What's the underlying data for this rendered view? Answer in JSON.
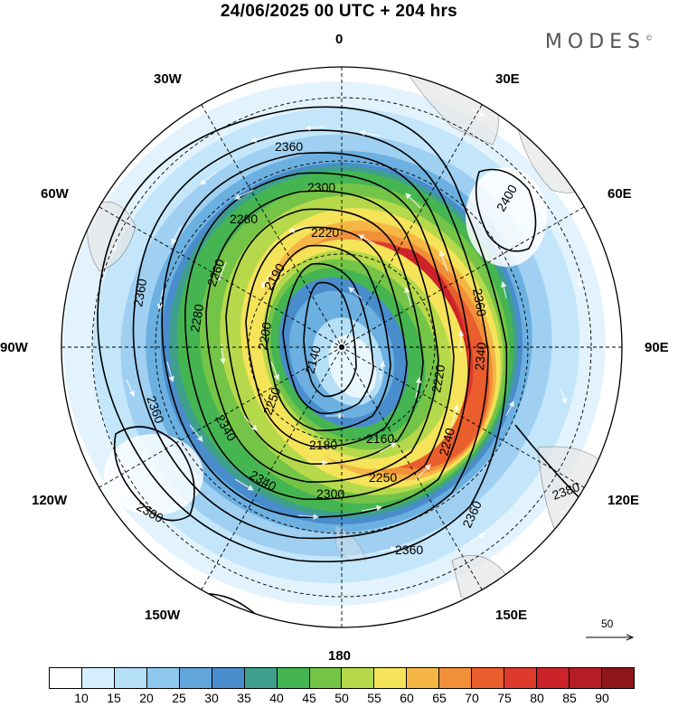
{
  "title": "24/06/2025  00 UTC  + 204 hrs",
  "brand": "MODES",
  "brand_mark": "©",
  "longitude_labels": {
    "lon_0": "0",
    "lon_30e": "30E",
    "lon_60e": "60E",
    "lon_90e": "90E",
    "lon_120e": "120E",
    "lon_150e": "150E",
    "lon_180": "180",
    "lon_150w": "150W",
    "lon_120w": "120W",
    "lon_90w": "90W",
    "lon_60w": "60W",
    "lon_30w": "30W"
  },
  "contour_labels": [
    "2360",
    "2300",
    "2280",
    "2220",
    "2190",
    "2260",
    "2280",
    "2200",
    "2140",
    "2250",
    "2160",
    "2180",
    "2300",
    "2250",
    "2240",
    "2220",
    "2340",
    "2360",
    "2400",
    "2380",
    "2360",
    "2360",
    "2380",
    "2340",
    "2340",
    "2360",
    "2360"
  ],
  "vector_scale": {
    "label": "50"
  },
  "colorbar": {
    "colors": [
      "#ffffff",
      "#d6efff",
      "#b4dff7",
      "#8ec8ee",
      "#62a6dc",
      "#4a8dcc",
      "#3ea08c",
      "#45b552",
      "#74c447",
      "#b6d94b",
      "#f5e35a",
      "#f6b645",
      "#f2903a",
      "#ea5e2d",
      "#de3a2b",
      "#cc2229",
      "#b51d24",
      "#8f161a"
    ],
    "tick_labels": [
      "10",
      "15",
      "20",
      "25",
      "30",
      "35",
      "40",
      "45",
      "50",
      "55",
      "60",
      "65",
      "70",
      "75",
      "80",
      "85",
      "90"
    ]
  }
}
